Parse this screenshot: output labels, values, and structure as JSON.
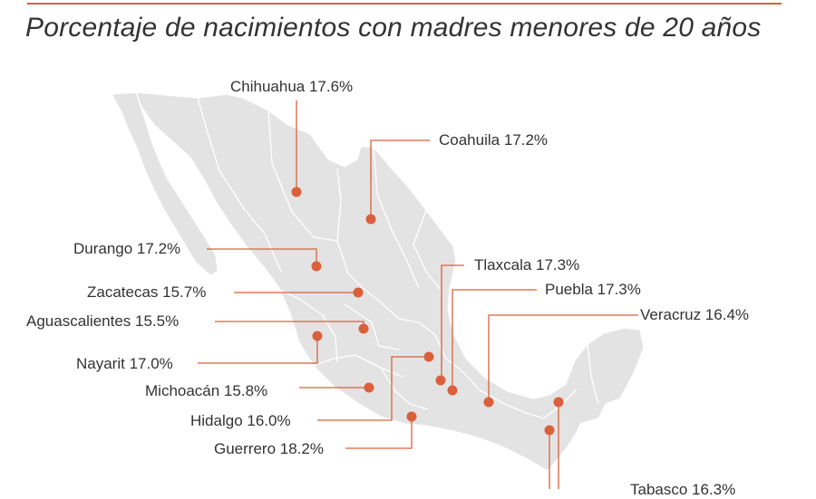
{
  "title": "Porcentaje de nacimientos con madres menores de 20 años",
  "colors": {
    "accent": "#d9603b",
    "land": "#e3e3e3",
    "border": "#ffffff",
    "text": "#333333"
  },
  "states": [
    {
      "id": "chihuahua",
      "label": "Chihuahua 17.6%",
      "value": 17.6
    },
    {
      "id": "coahuila",
      "label": "Coahuila 17.2%",
      "value": 17.2
    },
    {
      "id": "durango",
      "label": "Durango 17.2%",
      "value": 17.2
    },
    {
      "id": "tlaxcala",
      "label": "Tlaxcala 17.3%",
      "value": 17.3
    },
    {
      "id": "zacatecas",
      "label": "Zacatecas 15.7%",
      "value": 15.7
    },
    {
      "id": "puebla",
      "label": "Puebla 17.3%",
      "value": 17.3
    },
    {
      "id": "aguascalientes",
      "label": "Aguascalientes 15.5%",
      "value": 15.5
    },
    {
      "id": "veracruz",
      "label": "Veracruz 16.4%",
      "value": 16.4
    },
    {
      "id": "nayarit",
      "label": "Nayarit 17.0%",
      "value": 17.0
    },
    {
      "id": "michoacan",
      "label": "Michoacán 15.8%",
      "value": 15.8
    },
    {
      "id": "hidalgo",
      "label": "Hidalgo 16.0%",
      "value": 16.0
    },
    {
      "id": "guerrero",
      "label": "Guerrero 18.2%",
      "value": 18.2
    },
    {
      "id": "tabasco",
      "label": "Tabasco 16.3%",
      "value": 16.3
    }
  ]
}
